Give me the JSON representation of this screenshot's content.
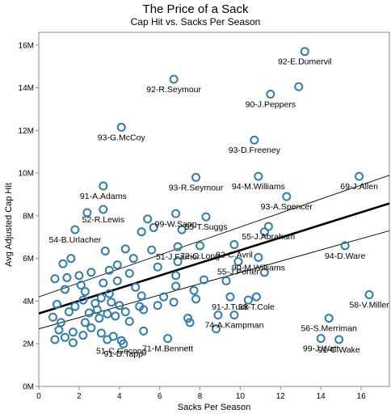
{
  "chart_data": {
    "type": "scatter",
    "title": "The Price of a Sack",
    "subtitle": "Cap Hit vs. Sacks Per Season",
    "xlabel": "Sacks Per Season",
    "ylabel": "Avg Adjusted Cap Hit",
    "xlim": [
      0,
      17.4
    ],
    "ylim": [
      0,
      16.6
    ],
    "x_ticks": [
      0,
      2,
      4,
      6,
      8,
      10,
      12,
      14,
      16
    ],
    "x_tick_labels": [
      "0",
      "2",
      "4",
      "6",
      "8",
      "10",
      "12",
      "14",
      "16"
    ],
    "y_ticks": [
      0,
      2,
      4,
      6,
      8,
      10,
      12,
      14,
      16
    ],
    "y_tick_labels": [
      "0M",
      "2M",
      "4M",
      "6M",
      "8M",
      "10M",
      "12M",
      "14M",
      "16M"
    ],
    "y_unit": "M",
    "grid": false,
    "marker": "open-circle",
    "colors": {
      "marker": "#2f7cae",
      "trend": "#000000",
      "axis": "#888888",
      "label": "#000000"
    },
    "trend_line": {
      "x": [
        0,
        17.4
      ],
      "y": [
        3.42,
        8.58
      ]
    },
    "confidence_band": {
      "upper": {
        "x": [
          0,
          17.4
        ],
        "y": [
          4.2,
          9.9
        ]
      },
      "lower": {
        "x": [
          0,
          17.4
        ],
        "y": [
          2.7,
          7.3
        ]
      }
    },
    "points": [
      {
        "x": 13.2,
        "y": 15.7,
        "label": "92-E.Dumervil"
      },
      {
        "x": 6.7,
        "y": 14.4,
        "label": "92-R.Seymour"
      },
      {
        "x": 12.9,
        "y": 14.05,
        "label": ""
      },
      {
        "x": 11.5,
        "y": 13.7,
        "label": "90-J.Peppers"
      },
      {
        "x": 4.1,
        "y": 12.15,
        "label": "93-G.McCoy"
      },
      {
        "x": 10.7,
        "y": 11.55,
        "label": "93-D.Freeney"
      },
      {
        "x": 7.8,
        "y": 9.8,
        "label": "93-R.Seymour"
      },
      {
        "x": 10.9,
        "y": 9.85,
        "label": "94-M.Williams"
      },
      {
        "x": 15.9,
        "y": 9.85,
        "label": "69-J.Allen"
      },
      {
        "x": 3.2,
        "y": 9.4,
        "label": "91-A.Adams"
      },
      {
        "x": 12.3,
        "y": 8.9,
        "label": "93-A.Spencer"
      },
      {
        "x": 3.2,
        "y": 8.3,
        "label": "52-R.Lewis"
      },
      {
        "x": 6.8,
        "y": 8.1,
        "label": "99-W.Sapp"
      },
      {
        "x": 2.4,
        "y": 8.15,
        "label": ""
      },
      {
        "x": 5.4,
        "y": 7.85,
        "label": ""
      },
      {
        "x": 8.3,
        "y": 7.95,
        "label": "55-T.Suggs"
      },
      {
        "x": 1.8,
        "y": 7.35,
        "label": "54-B.Urlacher"
      },
      {
        "x": 5.1,
        "y": 7.25,
        "label": ""
      },
      {
        "x": 5.7,
        "y": 7.45,
        "label": ""
      },
      {
        "x": 7.1,
        "y": 7.35,
        "label": ""
      },
      {
        "x": 11.2,
        "y": 7.25,
        "label": ""
      },
      {
        "x": 11.4,
        "y": 7.5,
        "label": "55-J.Abraham"
      },
      {
        "x": 6.9,
        "y": 6.55,
        "label": "51-J.Farrior"
      },
      {
        "x": 8.0,
        "y": 6.6,
        "label": "72-C.Long"
      },
      {
        "x": 9.7,
        "y": 6.65,
        "label": "92-C.Avril"
      },
      {
        "x": 15.2,
        "y": 6.6,
        "label": "94-D.Ware"
      },
      {
        "x": 3.3,
        "y": 6.35,
        "label": ""
      },
      {
        "x": 4.3,
        "y": 6.45,
        "label": ""
      },
      {
        "x": 5.6,
        "y": 6.4,
        "label": ""
      },
      {
        "x": 9.9,
        "y": 5.85,
        "label": "55-J.Porter"
      },
      {
        "x": 10.9,
        "y": 6.05,
        "label": "90-M.Williams"
      },
      {
        "x": 11.2,
        "y": 5.35,
        "label": ""
      },
      {
        "x": 1.2,
        "y": 5.75,
        "label": ""
      },
      {
        "x": 1.6,
        "y": 6.0,
        "label": ""
      },
      {
        "x": 3.9,
        "y": 5.7,
        "label": ""
      },
      {
        "x": 4.7,
        "y": 6.0,
        "label": ""
      },
      {
        "x": 6.9,
        "y": 5.85,
        "label": ""
      },
      {
        "x": 5.9,
        "y": 5.6,
        "label": ""
      },
      {
        "x": 2.6,
        "y": 5.35,
        "label": ""
      },
      {
        "x": 3.5,
        "y": 5.45,
        "label": ""
      },
      {
        "x": 4.5,
        "y": 5.3,
        "label": ""
      },
      {
        "x": 0.8,
        "y": 5.05,
        "label": ""
      },
      {
        "x": 1.4,
        "y": 5.1,
        "label": ""
      },
      {
        "x": 2.0,
        "y": 5.2,
        "label": ""
      },
      {
        "x": 6.8,
        "y": 5.2,
        "label": ""
      },
      {
        "x": 8.2,
        "y": 5.0,
        "label": ""
      },
      {
        "x": 9.3,
        "y": 4.95,
        "label": ""
      },
      {
        "x": 2.1,
        "y": 4.75,
        "label": ""
      },
      {
        "x": 3.2,
        "y": 4.85,
        "label": ""
      },
      {
        "x": 3.9,
        "y": 4.95,
        "label": ""
      },
      {
        "x": 4.8,
        "y": 4.65,
        "label": ""
      },
      {
        "x": 6.8,
        "y": 4.7,
        "label": ""
      },
      {
        "x": 7.7,
        "y": 4.5,
        "label": ""
      },
      {
        "x": 1.3,
        "y": 4.55,
        "label": ""
      },
      {
        "x": 2.3,
        "y": 4.45,
        "label": ""
      },
      {
        "x": 3.1,
        "y": 4.15,
        "label": ""
      },
      {
        "x": 3.5,
        "y": 4.35,
        "label": ""
      },
      {
        "x": 5.1,
        "y": 4.25,
        "label": ""
      },
      {
        "x": 6.2,
        "y": 4.2,
        "label": ""
      },
      {
        "x": 9.5,
        "y": 4.2,
        "label": "91-J.Tuck"
      },
      {
        "x": 10.4,
        "y": 4.05,
        "label": ""
      },
      {
        "x": 10.8,
        "y": 4.2,
        "label": "58-T.Cole"
      },
      {
        "x": 16.4,
        "y": 4.3,
        "label": "58-V.Miller"
      },
      {
        "x": 0.9,
        "y": 3.85,
        "label": ""
      },
      {
        "x": 1.8,
        "y": 3.75,
        "label": ""
      },
      {
        "x": 2.2,
        "y": 4.05,
        "label": ""
      },
      {
        "x": 2.8,
        "y": 3.9,
        "label": ""
      },
      {
        "x": 3.6,
        "y": 3.95,
        "label": ""
      },
      {
        "x": 4.0,
        "y": 3.8,
        "label": ""
      },
      {
        "x": 5.0,
        "y": 3.75,
        "label": ""
      },
      {
        "x": 5.9,
        "y": 3.8,
        "label": ""
      },
      {
        "x": 6.7,
        "y": 3.95,
        "label": ""
      },
      {
        "x": 7.8,
        "y": 4.1,
        "label": ""
      },
      {
        "x": 1.5,
        "y": 3.5,
        "label": ""
      },
      {
        "x": 2.5,
        "y": 3.45,
        "label": ""
      },
      {
        "x": 2.9,
        "y": 3.6,
        "label": ""
      },
      {
        "x": 3.4,
        "y": 3.4,
        "label": ""
      },
      {
        "x": 4.3,
        "y": 3.5,
        "label": ""
      },
      {
        "x": 5.2,
        "y": 3.6,
        "label": ""
      },
      {
        "x": 0.7,
        "y": 3.25,
        "label": ""
      },
      {
        "x": 1.1,
        "y": 3.0,
        "label": ""
      },
      {
        "x": 2.3,
        "y": 3.0,
        "label": ""
      },
      {
        "x": 3.0,
        "y": 3.2,
        "label": ""
      },
      {
        "x": 3.8,
        "y": 3.3,
        "label": ""
      },
      {
        "x": 4.5,
        "y": 3.05,
        "label": ""
      },
      {
        "x": 7.4,
        "y": 3.2,
        "label": ""
      },
      {
        "x": 7.5,
        "y": 3.0,
        "label": ""
      },
      {
        "x": 8.9,
        "y": 3.35,
        "label": ""
      },
      {
        "x": 9.7,
        "y": 3.35,
        "label": "74-A.Kampman"
      },
      {
        "x": 14.4,
        "y": 3.2,
        "label": "56-S.Merriman"
      },
      {
        "x": 1.0,
        "y": 2.65,
        "label": ""
      },
      {
        "x": 1.7,
        "y": 2.55,
        "label": ""
      },
      {
        "x": 2.6,
        "y": 2.75,
        "label": ""
      },
      {
        "x": 3.1,
        "y": 2.5,
        "label": ""
      },
      {
        "x": 8.8,
        "y": 2.7,
        "label": ""
      },
      {
        "x": 5.2,
        "y": 2.6,
        "label": ""
      },
      {
        "x": 0.8,
        "y": 2.2,
        "label": ""
      },
      {
        "x": 1.3,
        "y": 2.3,
        "label": ""
      },
      {
        "x": 1.7,
        "y": 2.05,
        "label": ""
      },
      {
        "x": 2.2,
        "y": 2.4,
        "label": ""
      },
      {
        "x": 3.4,
        "y": 2.2,
        "label": ""
      },
      {
        "x": 3.7,
        "y": 2.35,
        "label": ""
      },
      {
        "x": 4.2,
        "y": 2.0,
        "label": "91-D.Tapp"
      },
      {
        "x": 4.1,
        "y": 2.15,
        "label": "51-C.Gocong"
      },
      {
        "x": 6.4,
        "y": 2.25,
        "label": "71-M.Bennett"
      },
      {
        "x": 14.0,
        "y": 2.25,
        "label": "99-J.Watt"
      },
      {
        "x": 14.9,
        "y": 2.2,
        "label": "91-C.Wake"
      }
    ]
  }
}
